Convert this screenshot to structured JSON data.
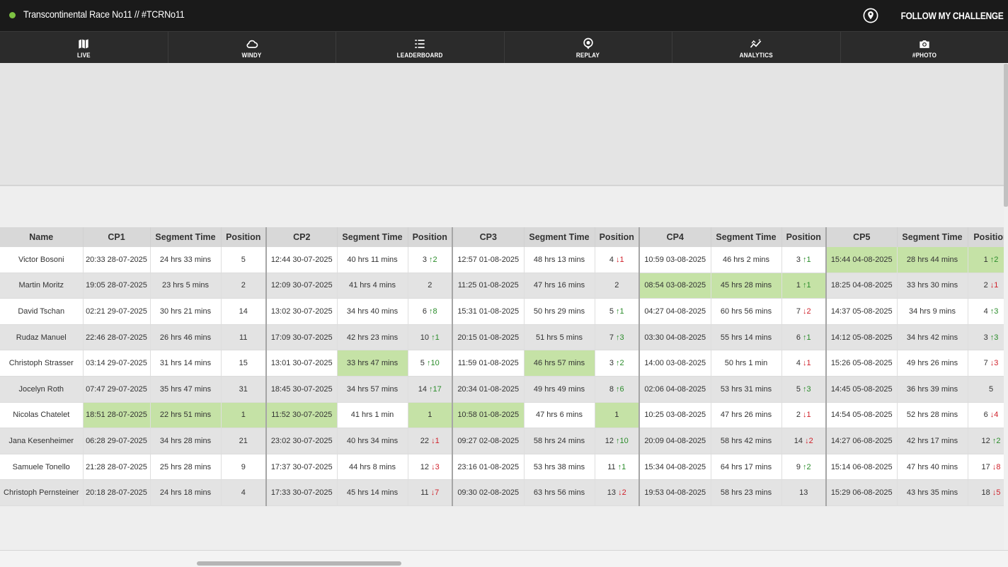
{
  "app": {
    "title": "Transcontinental Race No11 // #TCRNo11",
    "brand": "FOLLOW MY CHALLENGE",
    "status_color": "#7dc242",
    "highlight_color": "#c5e2a6"
  },
  "nav": [
    {
      "label": "LIVE",
      "icon": "map-icon"
    },
    {
      "label": "WINDY",
      "icon": "cloud-icon"
    },
    {
      "label": "LEADERBOARD",
      "icon": "list-icon"
    },
    {
      "label": "REPLAY",
      "icon": "replay-pin-icon"
    },
    {
      "label": "ANALYTICS",
      "icon": "analytics-icon"
    },
    {
      "label": "#PHOTO",
      "icon": "camera-icon"
    }
  ],
  "leaderboard": {
    "columns": [
      "Name",
      "CP1",
      "Segment Time",
      "Position",
      "CP2",
      "Segment Time",
      "Position",
      "CP3",
      "Segment Time",
      "Position",
      "CP4",
      "Segment Time",
      "Position",
      "CP5",
      "Segment Time",
      "Position"
    ],
    "rows": [
      {
        "name": "Victor Bosoni",
        "cps": [
          {
            "time": "20:33 28-07-2025",
            "seg": "24 hrs 33 mins",
            "pos": "5",
            "change": "",
            "dir": ""
          },
          {
            "time": "12:44 30-07-2025",
            "seg": "40 hrs 11 mins",
            "pos": "3",
            "change": "2",
            "dir": "up"
          },
          {
            "time": "12:57 01-08-2025",
            "seg": "48 hrs 13 mins",
            "pos": "4",
            "change": "1",
            "dir": "down"
          },
          {
            "time": "10:59 03-08-2025",
            "seg": "46 hrs 2 mins",
            "pos": "3",
            "change": "1",
            "dir": "up"
          },
          {
            "time": "15:44 04-08-2025",
            "seg": "28 hrs 44 mins",
            "pos": "1",
            "change": "2",
            "dir": "up",
            "best": true
          }
        ]
      },
      {
        "name": "Martin Moritz",
        "cps": [
          {
            "time": "19:05 28-07-2025",
            "seg": "23 hrs 5 mins",
            "pos": "2",
            "change": "",
            "dir": ""
          },
          {
            "time": "12:09 30-07-2025",
            "seg": "41 hrs 4 mins",
            "pos": "2",
            "change": "",
            "dir": ""
          },
          {
            "time": "11:25 01-08-2025",
            "seg": "47 hrs 16 mins",
            "pos": "2",
            "change": "",
            "dir": ""
          },
          {
            "time": "08:54 03-08-2025",
            "seg": "45 hrs 28 mins",
            "pos": "1",
            "change": "1",
            "dir": "up",
            "best": true
          },
          {
            "time": "18:25 04-08-2025",
            "seg": "33 hrs 30 mins",
            "pos": "2",
            "change": "1",
            "dir": "down"
          }
        ]
      },
      {
        "name": "David Tschan",
        "cps": [
          {
            "time": "02:21 29-07-2025",
            "seg": "30 hrs 21 mins",
            "pos": "14",
            "change": "",
            "dir": ""
          },
          {
            "time": "13:02 30-07-2025",
            "seg": "34 hrs 40 mins",
            "pos": "6",
            "change": "8",
            "dir": "up"
          },
          {
            "time": "15:31 01-08-2025",
            "seg": "50 hrs 29 mins",
            "pos": "5",
            "change": "1",
            "dir": "up"
          },
          {
            "time": "04:27 04-08-2025",
            "seg": "60 hrs 56 mins",
            "pos": "7",
            "change": "2",
            "dir": "down"
          },
          {
            "time": "14:37 05-08-2025",
            "seg": "34 hrs 9 mins",
            "pos": "4",
            "change": "3",
            "dir": "up"
          }
        ]
      },
      {
        "name": "Rudaz Manuel",
        "cps": [
          {
            "time": "22:46 28-07-2025",
            "seg": "26 hrs 46 mins",
            "pos": "11",
            "change": "",
            "dir": ""
          },
          {
            "time": "17:09 30-07-2025",
            "seg": "42 hrs 23 mins",
            "pos": "10",
            "change": "1",
            "dir": "up"
          },
          {
            "time": "20:15 01-08-2025",
            "seg": "51 hrs 5 mins",
            "pos": "7",
            "change": "3",
            "dir": "up"
          },
          {
            "time": "03:30 04-08-2025",
            "seg": "55 hrs 14 mins",
            "pos": "6",
            "change": "1",
            "dir": "up"
          },
          {
            "time": "14:12 05-08-2025",
            "seg": "34 hrs 42 mins",
            "pos": "3",
            "change": "3",
            "dir": "up"
          }
        ]
      },
      {
        "name": "Christoph Strasser",
        "cps": [
          {
            "time": "03:14 29-07-2025",
            "seg": "31 hrs 14 mins",
            "pos": "15",
            "change": "",
            "dir": ""
          },
          {
            "time": "13:01 30-07-2025",
            "seg": "33 hrs 47 mins",
            "pos": "5",
            "change": "10",
            "dir": "up",
            "seg_best": true
          },
          {
            "time": "11:59 01-08-2025",
            "seg": "46 hrs 57 mins",
            "pos": "3",
            "change": "2",
            "dir": "up",
            "seg_best": true
          },
          {
            "time": "14:00 03-08-2025",
            "seg": "50 hrs 1 min",
            "pos": "4",
            "change": "1",
            "dir": "down"
          },
          {
            "time": "15:26 05-08-2025",
            "seg": "49 hrs 26 mins",
            "pos": "7",
            "change": "3",
            "dir": "down"
          }
        ]
      },
      {
        "name": "Jocelyn Roth",
        "cps": [
          {
            "time": "07:47 29-07-2025",
            "seg": "35 hrs 47 mins",
            "pos": "31",
            "change": "",
            "dir": ""
          },
          {
            "time": "18:45 30-07-2025",
            "seg": "34 hrs 57 mins",
            "pos": "14",
            "change": "17",
            "dir": "up"
          },
          {
            "time": "20:34 01-08-2025",
            "seg": "49 hrs 49 mins",
            "pos": "8",
            "change": "6",
            "dir": "up"
          },
          {
            "time": "02:06 04-08-2025",
            "seg": "53 hrs 31 mins",
            "pos": "5",
            "change": "3",
            "dir": "up"
          },
          {
            "time": "14:45 05-08-2025",
            "seg": "36 hrs 39 mins",
            "pos": "5",
            "change": "",
            "dir": ""
          }
        ]
      },
      {
        "name": "Nicolas Chatelet",
        "cps": [
          {
            "time": "18:51 28-07-2025",
            "seg": "22 hrs 51 mins",
            "pos": "1",
            "change": "",
            "dir": "",
            "best": true
          },
          {
            "time": "11:52 30-07-2025",
            "seg": "41 hrs 1 min",
            "pos": "1",
            "change": "",
            "dir": "",
            "time_best": true,
            "pos_best": true
          },
          {
            "time": "10:58 01-08-2025",
            "seg": "47 hrs 6 mins",
            "pos": "1",
            "change": "",
            "dir": "",
            "time_best": true,
            "pos_best": true
          },
          {
            "time": "10:25 03-08-2025",
            "seg": "47 hrs 26 mins",
            "pos": "2",
            "change": "1",
            "dir": "down"
          },
          {
            "time": "14:54 05-08-2025",
            "seg": "52 hrs 28 mins",
            "pos": "6",
            "change": "4",
            "dir": "down"
          }
        ]
      },
      {
        "name": "Jana Kesenheimer",
        "cps": [
          {
            "time": "06:28 29-07-2025",
            "seg": "34 hrs 28 mins",
            "pos": "21",
            "change": "",
            "dir": ""
          },
          {
            "time": "23:02 30-07-2025",
            "seg": "40 hrs 34 mins",
            "pos": "22",
            "change": "1",
            "dir": "down"
          },
          {
            "time": "09:27 02-08-2025",
            "seg": "58 hrs 24 mins",
            "pos": "12",
            "change": "10",
            "dir": "up"
          },
          {
            "time": "20:09 04-08-2025",
            "seg": "58 hrs 42 mins",
            "pos": "14",
            "change": "2",
            "dir": "down"
          },
          {
            "time": "14:27 06-08-2025",
            "seg": "42 hrs 17 mins",
            "pos": "12",
            "change": "2",
            "dir": "up"
          }
        ]
      },
      {
        "name": "Samuele Tonello",
        "cps": [
          {
            "time": "21:28 28-07-2025",
            "seg": "25 hrs 28 mins",
            "pos": "9",
            "change": "",
            "dir": ""
          },
          {
            "time": "17:37 30-07-2025",
            "seg": "44 hrs 8 mins",
            "pos": "12",
            "change": "3",
            "dir": "down"
          },
          {
            "time": "23:16 01-08-2025",
            "seg": "53 hrs 38 mins",
            "pos": "11",
            "change": "1",
            "dir": "up"
          },
          {
            "time": "15:34 04-08-2025",
            "seg": "64 hrs 17 mins",
            "pos": "9",
            "change": "2",
            "dir": "up"
          },
          {
            "time": "15:14 06-08-2025",
            "seg": "47 hrs 40 mins",
            "pos": "17",
            "change": "8",
            "dir": "down"
          }
        ]
      },
      {
        "name": "Christoph Pernsteiner",
        "cps": [
          {
            "time": "20:18 28-07-2025",
            "seg": "24 hrs 18 mins",
            "pos": "4",
            "change": "",
            "dir": ""
          },
          {
            "time": "17:33 30-07-2025",
            "seg": "45 hrs 14 mins",
            "pos": "11",
            "change": "7",
            "dir": "down"
          },
          {
            "time": "09:30 02-08-2025",
            "seg": "63 hrs 56 mins",
            "pos": "13",
            "change": "2",
            "dir": "down"
          },
          {
            "time": "19:53 04-08-2025",
            "seg": "58 hrs 23 mins",
            "pos": "13",
            "change": "",
            "dir": ""
          },
          {
            "time": "15:29 06-08-2025",
            "seg": "43 hrs 35 mins",
            "pos": "18",
            "change": "5",
            "dir": "down"
          }
        ]
      }
    ]
  }
}
